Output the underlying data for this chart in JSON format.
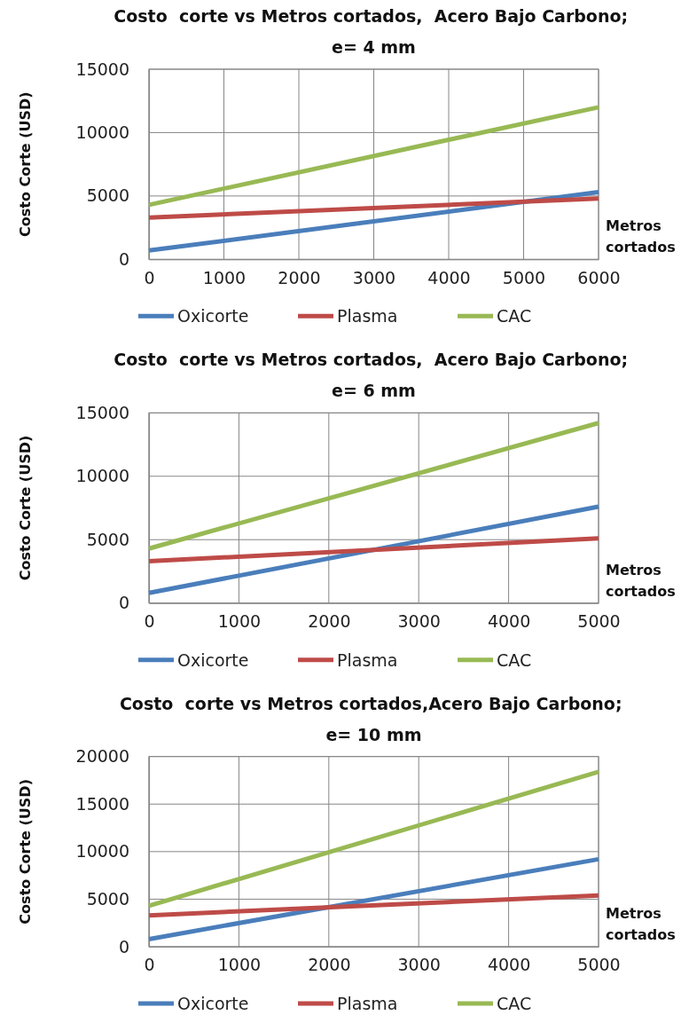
{
  "chart_data": [
    {
      "type": "line",
      "title": "Costo  corte vs Metros cortados,  Acero Bajo Carbono;  e= 4 mm",
      "xlabel": "Metros cortados",
      "ylabel": "Costo Corte (USD)",
      "x": [
        0,
        6000
      ],
      "xlim": [
        0,
        6000
      ],
      "xticks": [
        0,
        1000,
        2000,
        3000,
        4000,
        5000,
        6000
      ],
      "ylim": [
        0,
        15000
      ],
      "yticks": [
        0,
        5000,
        10000,
        15000
      ],
      "grid": true,
      "legend": "bottom",
      "marker": "none",
      "line_style": "solid",
      "series": [
        {
          "name": "Oxicorte",
          "color": "#4a7ebb",
          "values": [
            700,
            5300
          ]
        },
        {
          "name": "Plasma",
          "color": "#be4b48",
          "values": [
            3300,
            4800
          ]
        },
        {
          "name": "CAC",
          "color": "#98b954",
          "values": [
            4300,
            12000
          ]
        }
      ]
    },
    {
      "type": "line",
      "title": "Costo  corte vs Metros cortados,  Acero Bajo Carbono;  e= 6 mm",
      "xlabel": "Metros cortados",
      "ylabel": "Costo Corte (USD)",
      "x": [
        0,
        5000
      ],
      "xlim": [
        0,
        5000
      ],
      "xticks": [
        0,
        1000,
        2000,
        3000,
        4000,
        5000
      ],
      "ylim": [
        0,
        15000
      ],
      "yticks": [
        0,
        5000,
        10000,
        15000
      ],
      "grid": true,
      "legend": "bottom",
      "marker": "none",
      "line_style": "solid",
      "series": [
        {
          "name": "Oxicorte",
          "color": "#4a7ebb",
          "values": [
            800,
            7600
          ]
        },
        {
          "name": "Plasma",
          "color": "#be4b48",
          "values": [
            3300,
            5100
          ]
        },
        {
          "name": "CAC",
          "color": "#98b954",
          "values": [
            4300,
            14200
          ]
        }
      ]
    },
    {
      "type": "line",
      "title": "Costo  corte vs Metros cortados,Acero Bajo Carbono;  e= 10 mm",
      "xlabel": "Metros cortados",
      "ylabel": "Costo Corte (USD)",
      "x": [
        0,
        5000
      ],
      "xlim": [
        0,
        5000
      ],
      "xticks": [
        0,
        1000,
        2000,
        3000,
        4000,
        5000
      ],
      "ylim": [
        0,
        20000
      ],
      "yticks": [
        0,
        5000,
        10000,
        15000,
        20000
      ],
      "grid": true,
      "legend": "bottom",
      "marker": "none",
      "line_style": "solid",
      "series": [
        {
          "name": "Oxicorte",
          "color": "#4a7ebb",
          "values": [
            800,
            9200
          ]
        },
        {
          "name": "Plasma",
          "color": "#be4b48",
          "values": [
            3300,
            5400
          ]
        },
        {
          "name": "CAC",
          "color": "#98b954",
          "values": [
            4300,
            18400
          ]
        }
      ]
    }
  ]
}
